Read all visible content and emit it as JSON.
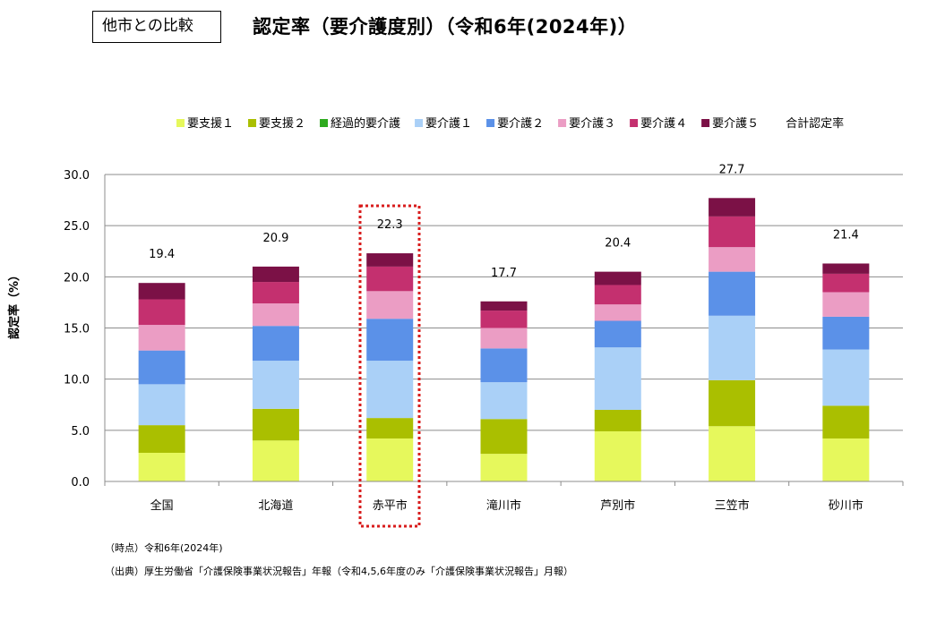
{
  "header": {
    "tag_label": "他市との比較",
    "title": "認定率（要介護度別）（令和6年(2024年)）"
  },
  "chart_data": {
    "type": "bar",
    "stacked": true,
    "ylabel": "認定率（%）",
    "ylim": [
      0,
      30
    ],
    "yticks": [
      "0.0",
      "5.0",
      "10.0",
      "15.0",
      "20.0",
      "25.0",
      "30.0"
    ],
    "grid": true,
    "legend_position": "top",
    "categories": [
      "全国",
      "北海道",
      "赤平市",
      "滝川市",
      "芦別市",
      "三笠市",
      "砂川市"
    ],
    "highlight_category": "赤平市",
    "series": [
      {
        "name": "要支援１",
        "color": "#e6f85c",
        "values": [
          2.8,
          4.0,
          4.2,
          2.7,
          4.9,
          5.4,
          4.2
        ]
      },
      {
        "name": "要支援２",
        "color": "#aabf00",
        "values": [
          2.7,
          3.1,
          2.0,
          3.4,
          2.1,
          4.5,
          3.2
        ]
      },
      {
        "name": "経過的要介護",
        "color": "#2eaa1e",
        "values": [
          0,
          0,
          0,
          0,
          0,
          0,
          0
        ]
      },
      {
        "name": "要介護１",
        "color": "#aad0f7",
        "values": [
          4.0,
          4.7,
          5.6,
          3.6,
          6.1,
          6.3,
          5.5
        ]
      },
      {
        "name": "要介護２",
        "color": "#5b91e8",
        "values": [
          3.3,
          3.4,
          4.1,
          3.3,
          2.6,
          4.3,
          3.2
        ]
      },
      {
        "name": "要介護３",
        "color": "#eb9dc4",
        "values": [
          2.5,
          2.2,
          2.7,
          2.0,
          1.6,
          2.4,
          2.4
        ]
      },
      {
        "name": "要介護４",
        "color": "#c4306f",
        "values": [
          2.5,
          2.1,
          2.4,
          1.7,
          1.9,
          3.0,
          1.8
        ]
      },
      {
        "name": "要介護５",
        "color": "#7b1146",
        "values": [
          1.6,
          1.5,
          1.3,
          0.9,
          1.3,
          1.8,
          1.0
        ]
      }
    ],
    "totals_series_name": "合計認定率",
    "totals": [
      "19.4",
      "20.9",
      "22.3",
      "17.7",
      "20.4",
      "27.7",
      "21.4"
    ]
  },
  "notes": {
    "time": "（時点）令和6年(2024年)",
    "source": "（出典）厚生労働省「介護保険事業状況報告」年報（令和4,5,6年度のみ「介護保険事業状況報告」月報）"
  }
}
